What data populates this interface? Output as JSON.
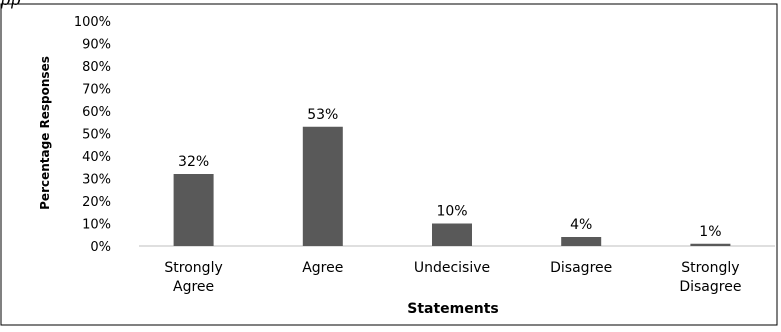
{
  "top_text": "pp",
  "chart_data": {
    "type": "bar",
    "categories": [
      "Strongly Agree",
      "Agree",
      "Undecisive",
      "Disagree",
      "Strongly Disagree"
    ],
    "category_lines": [
      [
        "Strongly",
        "Agree"
      ],
      [
        "Agree"
      ],
      [
        "Undecisive"
      ],
      [
        "Disagree"
      ],
      [
        "Strongly",
        "Disagree"
      ]
    ],
    "values": [
      32,
      53,
      10,
      4,
      1
    ],
    "data_labels": [
      "32%",
      "53%",
      "10%",
      "4%",
      "1%"
    ],
    "ylim": [
      0,
      100
    ],
    "yticks": [
      "0%",
      "10%",
      "20%",
      "30%",
      "40%",
      "50%",
      "60%",
      "70%",
      "80%",
      "90%",
      "100%"
    ],
    "xlabel": "Statements",
    "ylabel": "Percentage Responses",
    "bar_color": "#595959",
    "grid": false
  }
}
